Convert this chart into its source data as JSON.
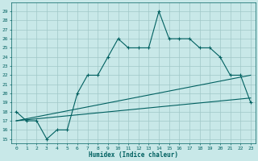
{
  "xlabel": "Humidex (Indice chaleur)",
  "ylabel": "",
  "bg_color": "#c8e8e8",
  "grid_color": "#a0c8c8",
  "line_color": "#006060",
  "xlim": [
    -0.5,
    23.5
  ],
  "ylim": [
    14.5,
    30
  ],
  "yticks": [
    15,
    16,
    17,
    18,
    19,
    20,
    21,
    22,
    23,
    24,
    25,
    26,
    27,
    28,
    29
  ],
  "xticks": [
    0,
    1,
    2,
    3,
    4,
    5,
    6,
    7,
    8,
    9,
    10,
    11,
    12,
    13,
    14,
    15,
    16,
    17,
    18,
    19,
    20,
    21,
    22,
    23
  ],
  "series1_x": [
    0,
    1,
    2,
    3,
    4,
    5,
    6,
    7,
    8,
    9,
    10,
    11,
    12,
    13,
    14,
    15,
    16,
    17,
    18,
    19,
    20,
    21,
    22,
    23
  ],
  "series1_y": [
    18,
    17,
    17,
    15,
    16,
    16,
    20,
    22,
    22,
    24,
    26,
    25,
    25,
    25,
    29,
    26,
    26,
    26,
    25,
    25,
    24,
    22,
    22,
    19
  ],
  "series2_x": [
    0,
    23
  ],
  "series2_y": [
    17,
    19.5
  ],
  "series3_x": [
    0,
    23
  ],
  "series3_y": [
    17,
    22
  ]
}
